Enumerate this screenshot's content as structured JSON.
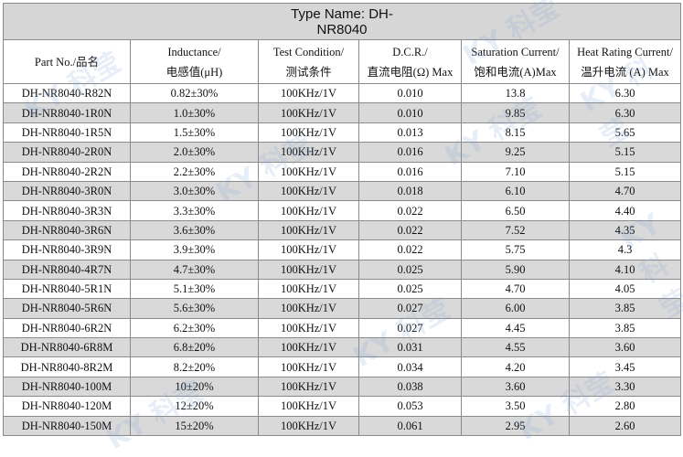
{
  "table": {
    "title_line1": "Type Name: DH-",
    "title_line2": "NR8040",
    "headers": [
      {
        "line1": "Part No./品名",
        "line2": ""
      },
      {
        "line1": "Inductance/",
        "line2": "电感值(μH)"
      },
      {
        "line1": "Test Condition/",
        "line2": "测试条件"
      },
      {
        "line1": "D.C.R./",
        "line2": "直流电阻(Ω) Max"
      },
      {
        "line1": "Saturation Current/",
        "line2": "饱和电流(A)Max"
      },
      {
        "line1": "Heat Rating Current/",
        "line2": "温升电流 (A) Max"
      }
    ],
    "rows": [
      [
        "DH-NR8040-R82N",
        "0.82±30%",
        "100KHz/1V",
        "0.010",
        "13.8",
        "6.30"
      ],
      [
        "DH-NR8040-1R0N",
        "1.0±30%",
        "100KHz/1V",
        "0.010",
        "9.85",
        "6.30"
      ],
      [
        "DH-NR8040-1R5N",
        "1.5±30%",
        "100KHz/1V",
        "0.013",
        "8.15",
        "5.65"
      ],
      [
        "DH-NR8040-2R0N",
        "2.0±30%",
        "100KHz/1V",
        "0.016",
        "9.25",
        "5.15"
      ],
      [
        "DH-NR8040-2R2N",
        "2.2±30%",
        "100KHz/1V",
        "0.016",
        "7.10",
        "5.15"
      ],
      [
        "DH-NR8040-3R0N",
        "3.0±30%",
        "100KHz/1V",
        "0.018",
        "6.10",
        "4.70"
      ],
      [
        "DH-NR8040-3R3N",
        "3.3±30%",
        "100KHz/1V",
        "0.022",
        "6.50",
        "4.40"
      ],
      [
        "DH-NR8040-3R6N",
        "3.6±30%",
        "100KHz/1V",
        "0.022",
        "7.52",
        "4.35"
      ],
      [
        "DH-NR8040-3R9N",
        "3.9±30%",
        "100KHz/1V",
        "0.022",
        "5.75",
        "4.3"
      ],
      [
        "DH-NR8040-4R7N",
        "4.7±30%",
        "100KHz/1V",
        "0.025",
        "5.90",
        "4.10"
      ],
      [
        "DH-NR8040-5R1N",
        "5.1±30%",
        "100KHz/1V",
        "0.025",
        "4.70",
        "4.05"
      ],
      [
        "DH-NR8040-5R6N",
        "5.6±30%",
        "100KHz/1V",
        "0.027",
        "6.00",
        "3.85"
      ],
      [
        "DH-NR8040-6R2N",
        "6.2±30%",
        "100KHz/1V",
        "0.027",
        "4.45",
        "3.85"
      ],
      [
        "DH-NR8040-6R8M",
        "6.8±20%",
        "100KHz/1V",
        "0.031",
        "4.55",
        "3.60"
      ],
      [
        "DH-NR8040-8R2M",
        "8.2±20%",
        "100KHz/1V",
        "0.034",
        "4.20",
        "3.45"
      ],
      [
        "DH-NR8040-100M",
        "10±20%",
        "100KHz/1V",
        "0.038",
        "3.60",
        "3.30"
      ],
      [
        "DH-NR8040-120M",
        "12±20%",
        "100KHz/1V",
        "0.053",
        "3.50",
        "2.80"
      ],
      [
        "DH-NR8040-150M",
        "15±20%",
        "100KHz/1V",
        "0.061",
        "2.95",
        "2.60"
      ]
    ]
  },
  "watermark_text": "KY 科莹",
  "colors": {
    "title_bg": "#d6d6d6",
    "alt_row_bg": "#d9d9d9",
    "border": "#8a8a8a"
  }
}
